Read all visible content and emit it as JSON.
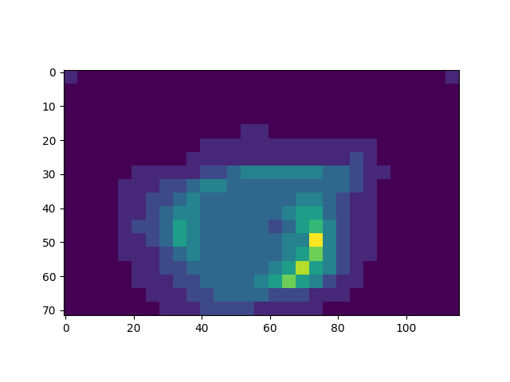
{
  "chart_data": {
    "type": "heatmap",
    "xlim": [
      -0.5,
      115.5
    ],
    "ylim": [
      71.5,
      -0.5
    ],
    "xticks": [
      0,
      20,
      40,
      60,
      80,
      100
    ],
    "yticks": [
      0,
      10,
      20,
      30,
      40,
      50,
      60,
      70
    ],
    "cells": [
      [
        2,
        1,
        1,
        1,
        1,
        1,
        1,
        1,
        1,
        1,
        1,
        1,
        1,
        1,
        1,
        1,
        1,
        1,
        1,
        1,
        1,
        1,
        1,
        1,
        1,
        1,
        1,
        1,
        2
      ],
      [
        1,
        1,
        1,
        1,
        1,
        1,
        1,
        1,
        1,
        1,
        1,
        1,
        1,
        1,
        1,
        1,
        1,
        1,
        1,
        1,
        1,
        1,
        1,
        1,
        1,
        1,
        1,
        1,
        1
      ],
      [
        1,
        1,
        1,
        1,
        1,
        1,
        1,
        1,
        1,
        1,
        1,
        1,
        1,
        1,
        1,
        1,
        1,
        1,
        1,
        1,
        1,
        1,
        1,
        1,
        1,
        1,
        1,
        1,
        1
      ],
      [
        1,
        1,
        1,
        1,
        1,
        1,
        1,
        1,
        1,
        1,
        1,
        1,
        1,
        1,
        1,
        1,
        1,
        1,
        1,
        1,
        1,
        1,
        1,
        1,
        1,
        1,
        1,
        1,
        1
      ],
      [
        1,
        1,
        1,
        1,
        1,
        1,
        1,
        1,
        1,
        1,
        1,
        1,
        1,
        2,
        2,
        1,
        1,
        1,
        1,
        1,
        1,
        1,
        1,
        1,
        1,
        1,
        1,
        1,
        1
      ],
      [
        1,
        1,
        1,
        1,
        1,
        1,
        1,
        1,
        1,
        1,
        2,
        2,
        2,
        2,
        2,
        2,
        2,
        2,
        2,
        2,
        2,
        2,
        2,
        1,
        1,
        1,
        1,
        1,
        1
      ],
      [
        1,
        1,
        1,
        1,
        1,
        1,
        1,
        1,
        1,
        2,
        2,
        2,
        2,
        2,
        2,
        2,
        2,
        2,
        2,
        2,
        2,
        3,
        2,
        1,
        1,
        1,
        1,
        1,
        1
      ],
      [
        1,
        1,
        1,
        1,
        1,
        2,
        2,
        2,
        2,
        2,
        3,
        3,
        4,
        5,
        5,
        5,
        5,
        5,
        5,
        4,
        4,
        3,
        2,
        2,
        1,
        1,
        1,
        1,
        1
      ],
      [
        1,
        1,
        1,
        1,
        2,
        2,
        2,
        3,
        3,
        4,
        5,
        5,
        4,
        4,
        4,
        4,
        4,
        4,
        4,
        4,
        4,
        3,
        2,
        1,
        1,
        1,
        1,
        1,
        1
      ],
      [
        1,
        1,
        1,
        1,
        2,
        2,
        3,
        3,
        4,
        5,
        4,
        4,
        4,
        4,
        4,
        4,
        4,
        5,
        5,
        4,
        3,
        2,
        2,
        1,
        1,
        1,
        1,
        1,
        1
      ],
      [
        1,
        1,
        1,
        1,
        2,
        2,
        3,
        4,
        5,
        5,
        4,
        4,
        4,
        4,
        4,
        4,
        5,
        6,
        6,
        4,
        3,
        2,
        2,
        1,
        1,
        1,
        1,
        1,
        1
      ],
      [
        1,
        1,
        1,
        1,
        2,
        3,
        3,
        4,
        6,
        5,
        4,
        4,
        4,
        4,
        4,
        3,
        4,
        6,
        7,
        5,
        3,
        2,
        2,
        1,
        1,
        1,
        1,
        1,
        1
      ],
      [
        1,
        1,
        1,
        1,
        2,
        2,
        3,
        4,
        6,
        5,
        4,
        4,
        4,
        4,
        4,
        4,
        5,
        5,
        10,
        5,
        3,
        2,
        2,
        1,
        1,
        1,
        1,
        1,
        1
      ],
      [
        1,
        1,
        1,
        1,
        2,
        2,
        2,
        3,
        4,
        5,
        4,
        4,
        4,
        4,
        4,
        4,
        5,
        6,
        8,
        5,
        3,
        2,
        2,
        1,
        1,
        1,
        1,
        1,
        1
      ],
      [
        1,
        1,
        1,
        1,
        1,
        2,
        2,
        3,
        3,
        4,
        4,
        4,
        4,
        4,
        4,
        5,
        6,
        9,
        6,
        5,
        3,
        2,
        1,
        1,
        1,
        1,
        1,
        1,
        1
      ],
      [
        1,
        1,
        1,
        1,
        1,
        2,
        2,
        2,
        3,
        3,
        4,
        4,
        4,
        4,
        5,
        6,
        8,
        6,
        5,
        3,
        2,
        2,
        1,
        1,
        1,
        1,
        1,
        1,
        1
      ],
      [
        1,
        1,
        1,
        1,
        1,
        1,
        2,
        2,
        2,
        3,
        3,
        4,
        4,
        4,
        4,
        3,
        3,
        3,
        2,
        2,
        2,
        1,
        1,
        1,
        1,
        1,
        1,
        1,
        1
      ],
      [
        1,
        1,
        1,
        1,
        1,
        1,
        1,
        2,
        2,
        2,
        3,
        3,
        3,
        3,
        2,
        2,
        2,
        2,
        2,
        1,
        1,
        1,
        1,
        1,
        1,
        1,
        1,
        1,
        1
      ]
    ]
  }
}
